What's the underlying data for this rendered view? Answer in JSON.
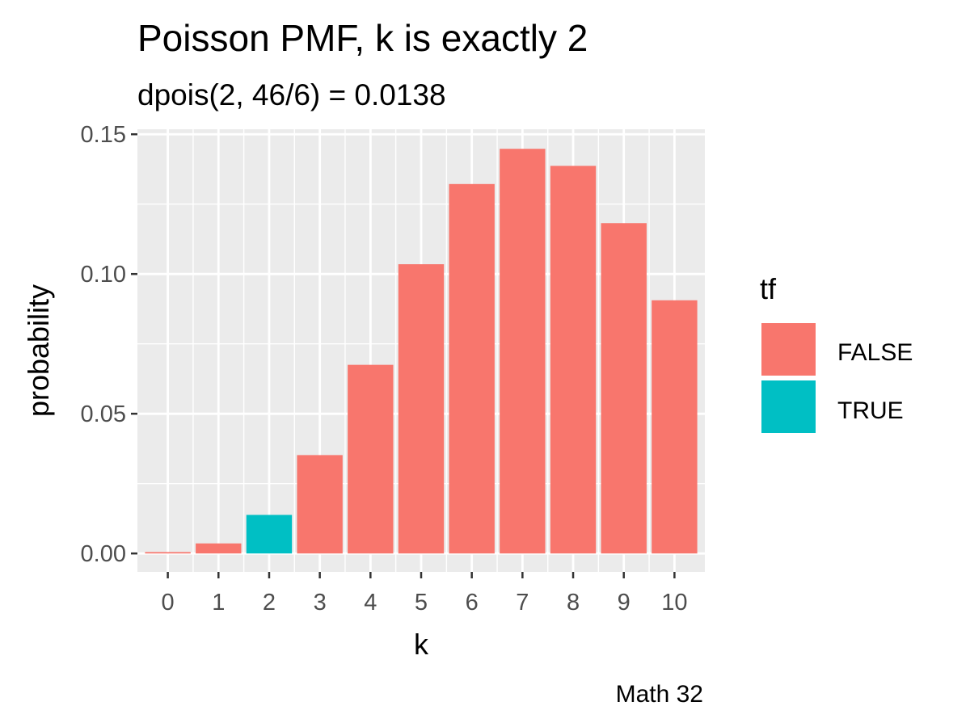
{
  "chart_data": {
    "type": "bar",
    "title": "Poisson PMF, k is exactly 2",
    "subtitle": "dpois(2, 46/6) = 0.0138",
    "xlabel": "k",
    "ylabel": "probability",
    "caption": "Math 32",
    "categories": [
      "0",
      "1",
      "2",
      "3",
      "4",
      "5",
      "6",
      "7",
      "8",
      "9",
      "10"
    ],
    "values": [
      0.0005,
      0.0036,
      0.0138,
      0.0352,
      0.0675,
      0.1035,
      0.1322,
      0.1448,
      0.1387,
      0.1182,
      0.0906
    ],
    "highlight": [
      false,
      false,
      true,
      false,
      false,
      false,
      false,
      false,
      false,
      false,
      false
    ],
    "ylim": [
      -0.0066,
      0.1518
    ],
    "y_ticks": [
      0,
      0.05,
      0.1,
      0.15
    ],
    "y_tick_labels": [
      "0.00",
      "0.05",
      "0.10",
      "0.15"
    ],
    "grid": true,
    "legend": {
      "title": "tf",
      "placement": "right",
      "entries": [
        {
          "label": "FALSE",
          "color": "#F8766D"
        },
        {
          "label": "TRUE",
          "color": "#00BFC4"
        }
      ]
    },
    "colors": {
      "panel": "#EBEBEB",
      "grid": "#FFFFFF",
      "false": "#F8766D",
      "true": "#00BFC4"
    }
  }
}
